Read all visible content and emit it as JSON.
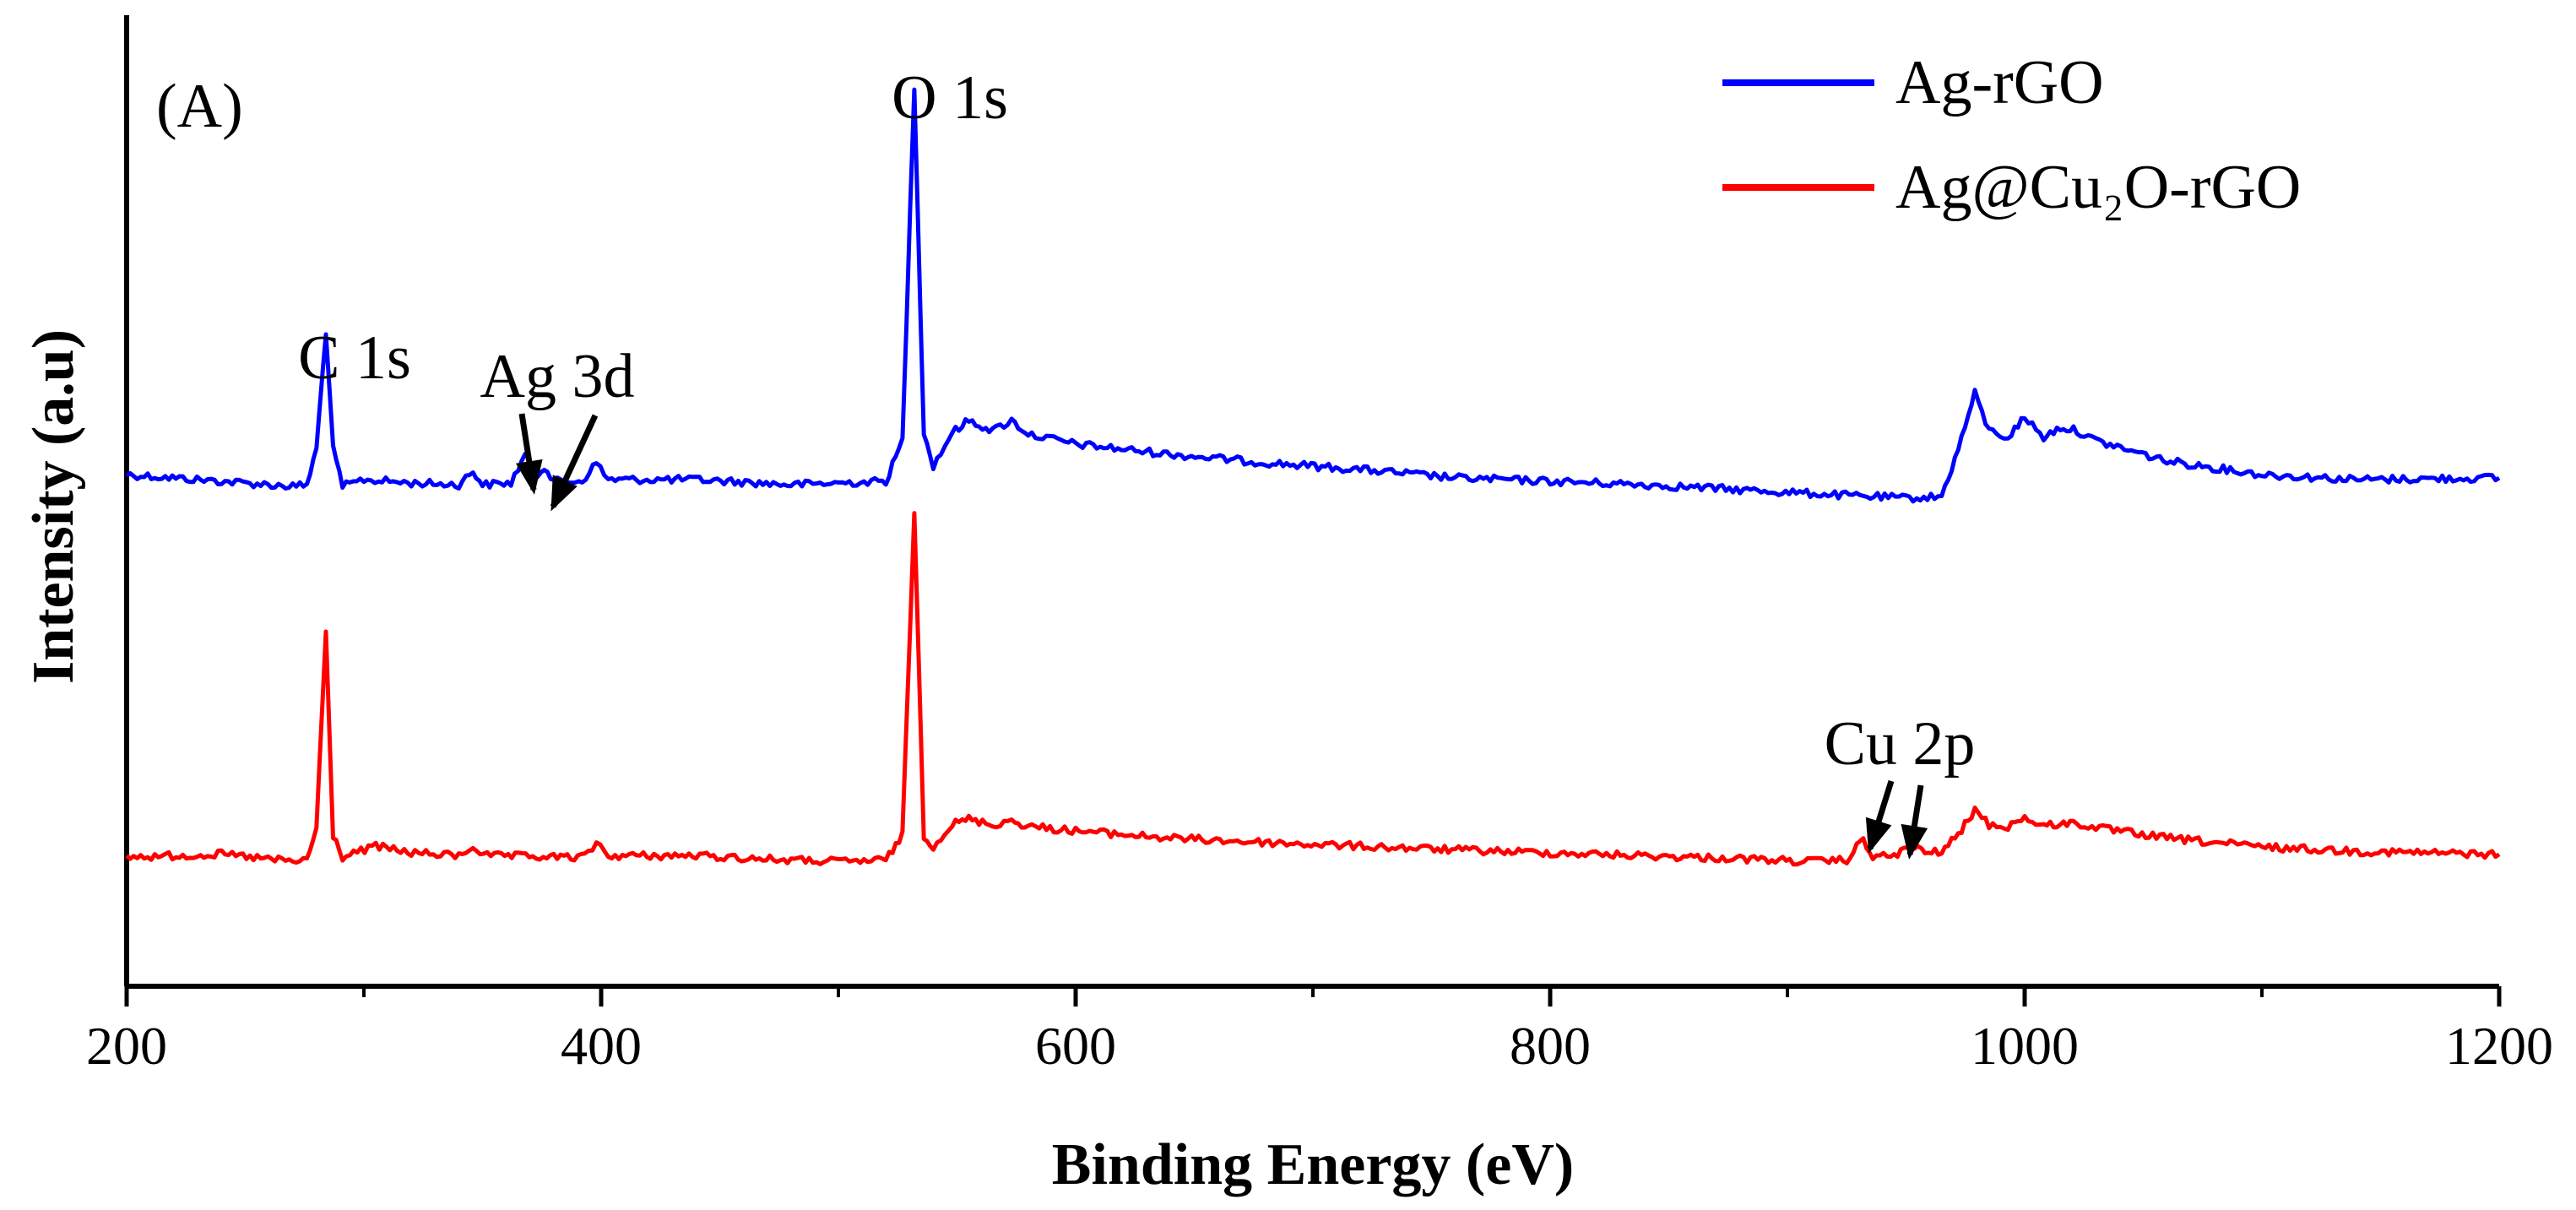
{
  "chart_data": {
    "type": "line",
    "panel_label": "(A)",
    "xlabel": "Binding Energy (eV)",
    "ylabel": "Intensity (a.u)",
    "xlim": [
      200,
      1200
    ],
    "xticks": [
      200,
      400,
      600,
      800,
      1000,
      1200
    ],
    "y_units": "arbitrary",
    "legend_position": "top-right",
    "series": [
      {
        "name": "Ag-rGO",
        "color": "#0000ff",
        "points": [
          [
            200,
            0.4
          ],
          [
            240,
            0.36
          ],
          [
            270,
            0.33
          ],
          [
            276,
            0.34
          ],
          [
            280,
            0.55
          ],
          [
            284,
            1.25
          ],
          [
            287,
            0.55
          ],
          [
            291,
            0.33
          ],
          [
            300,
            0.37
          ],
          [
            320,
            0.35
          ],
          [
            340,
            0.34
          ],
          [
            346,
            0.42
          ],
          [
            350,
            0.34
          ],
          [
            362,
            0.35
          ],
          [
            368,
            0.52
          ],
          [
            372,
            0.38
          ],
          [
            376,
            0.45
          ],
          [
            380,
            0.36
          ],
          [
            392,
            0.36
          ],
          [
            398,
            0.47
          ],
          [
            403,
            0.37
          ],
          [
            440,
            0.37
          ],
          [
            480,
            0.34
          ],
          [
            500,
            0.35
          ],
          [
            520,
            0.36
          ],
          [
            527,
            0.6
          ],
          [
            532,
            2.7
          ],
          [
            536,
            0.65
          ],
          [
            540,
            0.45
          ],
          [
            548,
            0.65
          ],
          [
            555,
            0.72
          ],
          [
            565,
            0.66
          ],
          [
            573,
            0.72
          ],
          [
            580,
            0.64
          ],
          [
            600,
            0.58
          ],
          [
            640,
            0.52
          ],
          [
            680,
            0.47
          ],
          [
            720,
            0.43
          ],
          [
            760,
            0.38
          ],
          [
            800,
            0.36
          ],
          [
            840,
            0.34
          ],
          [
            880,
            0.31
          ],
          [
            920,
            0.28
          ],
          [
            950,
            0.26
          ],
          [
            965,
            0.27
          ],
          [
            972,
            0.55
          ],
          [
            979,
            0.88
          ],
          [
            985,
            0.66
          ],
          [
            993,
            0.62
          ],
          [
            1000,
            0.74
          ],
          [
            1008,
            0.62
          ],
          [
            1015,
            0.68
          ],
          [
            1022,
            0.66
          ],
          [
            1030,
            0.6
          ],
          [
            1060,
            0.48
          ],
          [
            1100,
            0.4
          ],
          [
            1140,
            0.37
          ],
          [
            1200,
            0.38
          ]
        ]
      },
      {
        "name": "Ag@Cu₂O-rGO",
        "color": "#ff0000",
        "points": [
          [
            200,
            0.4
          ],
          [
            240,
            0.44
          ],
          [
            270,
            0.34
          ],
          [
            276,
            0.36
          ],
          [
            280,
            0.8
          ],
          [
            284,
            3.45
          ],
          [
            287,
            0.7
          ],
          [
            291,
            0.4
          ],
          [
            305,
            0.55
          ],
          [
            320,
            0.46
          ],
          [
            340,
            0.42
          ],
          [
            346,
            0.54
          ],
          [
            352,
            0.42
          ],
          [
            380,
            0.4
          ],
          [
            393,
            0.4
          ],
          [
            398,
            0.6
          ],
          [
            403,
            0.42
          ],
          [
            440,
            0.42
          ],
          [
            480,
            0.36
          ],
          [
            500,
            0.34
          ],
          [
            520,
            0.36
          ],
          [
            527,
            0.7
          ],
          [
            532,
            5.1
          ],
          [
            536,
            0.7
          ],
          [
            540,
            0.55
          ],
          [
            548,
            0.85
          ],
          [
            555,
            0.92
          ],
          [
            565,
            0.84
          ],
          [
            573,
            0.9
          ],
          [
            580,
            0.82
          ],
          [
            600,
            0.76
          ],
          [
            640,
            0.66
          ],
          [
            680,
            0.6
          ],
          [
            720,
            0.55
          ],
          [
            760,
            0.5
          ],
          [
            800,
            0.46
          ],
          [
            840,
            0.42
          ],
          [
            880,
            0.38
          ],
          [
            910,
            0.34
          ],
          [
            925,
            0.36
          ],
          [
            932,
            0.65
          ],
          [
            936,
            0.4
          ],
          [
            945,
            0.42
          ],
          [
            952,
            0.56
          ],
          [
            958,
            0.46
          ],
          [
            965,
            0.48
          ],
          [
            972,
            0.7
          ],
          [
            979,
            1.05
          ],
          [
            985,
            0.84
          ],
          [
            993,
            0.82
          ],
          [
            1000,
            0.94
          ],
          [
            1008,
            0.82
          ],
          [
            1015,
            0.86
          ],
          [
            1022,
            0.86
          ],
          [
            1030,
            0.8
          ],
          [
            1060,
            0.66
          ],
          [
            1100,
            0.54
          ],
          [
            1140,
            0.48
          ],
          [
            1200,
            0.44
          ]
        ]
      }
    ],
    "annotations": [
      {
        "text": "C 1s",
        "series": "Ag-rGO",
        "x": 284
      },
      {
        "text": "Ag 3d",
        "series": "Ag-rGO",
        "x": 368,
        "arrows_to": [
          368,
          374
        ]
      },
      {
        "text": "O 1s",
        "series": "Ag-rGO",
        "x": 532
      },
      {
        "text": "Cu 2p",
        "series": "Ag@Cu₂O-rGO",
        "x": 945,
        "arrows_to": [
          932,
          952
        ]
      }
    ]
  }
}
